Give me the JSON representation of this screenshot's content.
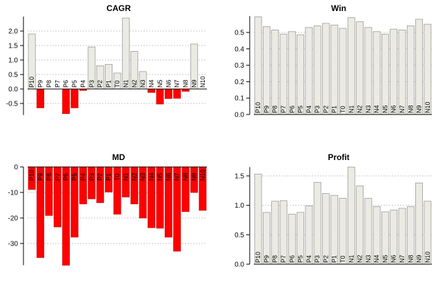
{
  "chart_data": [
    {
      "type": "bar",
      "title": "CAGR",
      "xlabel": "",
      "ylabel": "",
      "categories": [
        "P10",
        "P9",
        "P8",
        "P7",
        "P6",
        "P5",
        "P4",
        "P3",
        "P2",
        "P1",
        "T0",
        "N1",
        "N2",
        "N3",
        "N4",
        "N5",
        "N6",
        "N7",
        "N8",
        "N9",
        "N10"
      ],
      "values": [
        1.9,
        -0.65,
        0,
        0,
        -0.85,
        -0.65,
        -0.05,
        1.45,
        0.8,
        0.85,
        0.55,
        2.45,
        1.3,
        0.6,
        -0.12,
        -0.52,
        -0.33,
        -0.32,
        -0.08,
        1.55,
        0
      ],
      "yticks": [
        "2.0",
        "1.5",
        "1.0",
        "0.5",
        "0.0",
        "-0.5"
      ],
      "ylim": [
        -0.9,
        2.5
      ],
      "grid": true,
      "colors": {
        "positive": "#ebebe4",
        "negative": "#ff0000"
      }
    },
    {
      "type": "bar",
      "title": "Win",
      "xlabel": "",
      "ylabel": "",
      "categories": [
        "P10",
        "P9",
        "P8",
        "P7",
        "P6",
        "P5",
        "P4",
        "P3",
        "P2",
        "P1",
        "T0",
        "N1",
        "N2",
        "N3",
        "N4",
        "N5",
        "N6",
        "N7",
        "N8",
        "N9",
        "N10"
      ],
      "values": [
        0.595,
        0.535,
        0.515,
        0.49,
        0.505,
        0.485,
        0.53,
        0.54,
        0.555,
        0.545,
        0.525,
        0.59,
        0.565,
        0.53,
        0.505,
        0.49,
        0.52,
        0.515,
        0.54,
        0.58,
        0.55
      ],
      "yticks": [
        "0.5",
        "0.4",
        "0.3",
        "0.2",
        "0.1",
        "0.0"
      ],
      "ylim": [
        0,
        0.6
      ],
      "grid": true,
      "colors": {
        "positive": "#ebebe4"
      }
    },
    {
      "type": "bar",
      "title": "MD",
      "xlabel": "",
      "ylabel": "",
      "categories": [
        "P10",
        "P9",
        "P8",
        "P7",
        "P6",
        "P5",
        "P4",
        "P3",
        "P2",
        "P1",
        "T0",
        "N1",
        "N2",
        "N3",
        "N4",
        "N5",
        "N6",
        "N7",
        "N8",
        "N9",
        "N10"
      ],
      "values": [
        -8.8,
        -35.5,
        -19.0,
        -23.5,
        -38.5,
        -27.5,
        -14.5,
        -12.5,
        -14.0,
        -9.8,
        -18.5,
        -11.8,
        -14.5,
        -20.0,
        -23.8,
        -24.0,
        -27.5,
        -33.0,
        -17.5,
        -10.0,
        -17.0
      ],
      "yticks": [
        "0",
        "-10",
        "-20",
        "-30"
      ],
      "ylim": [
        -38.5,
        0
      ],
      "grid": true,
      "colors": {
        "negative": "#ff0000"
      }
    },
    {
      "type": "bar",
      "title": "Profit",
      "xlabel": "",
      "ylabel": "",
      "categories": [
        "P10",
        "P9",
        "P8",
        "P7",
        "P6",
        "P5",
        "P4",
        "P3",
        "P2",
        "P1",
        "T0",
        "N1",
        "N2",
        "N3",
        "N4",
        "N5",
        "N6",
        "N7",
        "N8",
        "N9",
        "N10"
      ],
      "values": [
        1.53,
        0.88,
        1.07,
        1.08,
        0.85,
        0.88,
        0.99,
        1.39,
        1.2,
        1.17,
        1.12,
        1.65,
        1.33,
        1.12,
        0.98,
        0.89,
        0.92,
        0.95,
        0.98,
        1.38,
        1.07
      ],
      "yticks": [
        "1.5",
        "1.0",
        "0.5",
        "0.0"
      ],
      "ylim": [
        0,
        1.65
      ],
      "grid": true,
      "colors": {
        "positive": "#ebebe4"
      }
    }
  ]
}
